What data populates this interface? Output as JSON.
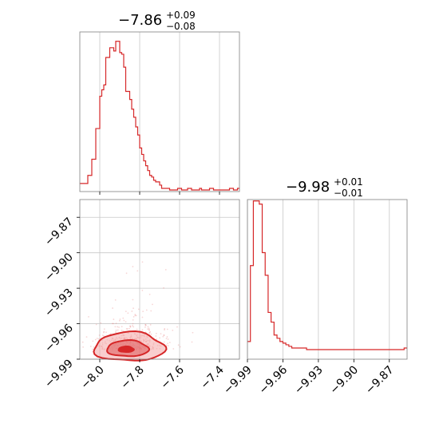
{
  "figure": {
    "accent_color": "#d62728",
    "fill_color": "#f4a6a6"
  },
  "chart_data": [
    {
      "panel": "marginal-param1",
      "type": "histogram",
      "title": "−7.86",
      "title_sup": "+0.09",
      "title_sub": "−0.08",
      "xlim": [
        -8.1,
        -7.3
      ],
      "bin_width": 0.01,
      "x_start": -8.1,
      "counts": [
        4,
        4,
        4,
        4,
        9,
        9,
        19,
        19,
        38,
        38,
        58,
        62,
        65,
        82,
        82,
        88,
        88,
        86,
        92,
        92,
        85,
        84,
        76,
        61,
        61,
        56,
        50,
        45,
        39,
        34,
        26,
        22,
        18,
        15,
        12,
        9,
        8,
        6,
        5,
        5,
        3,
        1,
        1,
        1,
        1,
        0,
        0,
        0,
        0,
        1,
        1,
        0,
        0,
        0,
        1,
        1,
        0,
        0,
        0,
        0,
        1,
        0,
        0,
        0,
        0,
        1,
        1,
        0,
        0,
        0,
        0,
        0,
        0,
        0,
        0,
        1,
        1,
        0,
        0,
        1
      ],
      "grid": true
    },
    {
      "panel": "joint-param1-param2",
      "type": "scatter",
      "xlim": [
        -8.1,
        -7.3
      ],
      "ylim": [
        -9.99,
        -9.855
      ],
      "xticks": [
        "−8.0",
        "−7.8",
        "−7.6",
        "−7.4"
      ],
      "xtick_values": [
        -8.0,
        -7.8,
        -7.6,
        -7.4
      ],
      "yticks": [
        "−9.87",
        "−9.90",
        "−9.93",
        "−9.96",
        "−9.99"
      ],
      "ytick_values": [
        -9.87,
        -9.9,
        -9.93,
        -9.96,
        -9.99
      ],
      "contour_levels": [
        0.39,
        0.86
      ],
      "grid": true
    },
    {
      "panel": "marginal-param2",
      "type": "histogram",
      "title": "−9.98",
      "title_sup": "+0.01",
      "title_sub": "−0.01",
      "xlim": [
        -9.99,
        -9.855
      ],
      "bin_width": 0.0025,
      "x_start": -9.99,
      "counts": [
        5,
        52,
        92,
        92,
        90,
        60,
        46,
        23,
        17,
        9,
        7,
        5,
        4,
        3,
        2,
        1,
        1,
        1,
        1,
        1,
        0,
        0,
        0,
        0,
        0,
        0,
        0,
        0,
        0,
        0,
        0,
        0,
        0,
        0,
        0,
        0,
        0,
        0,
        0,
        0,
        0,
        0,
        0,
        0,
        0,
        0,
        0,
        0,
        0,
        0,
        0,
        0,
        0,
        1
      ],
      "xticks": [
        "−9.99",
        "−9.96",
        "−9.93",
        "−9.90",
        "−9.87"
      ],
      "xtick_values": [
        -9.99,
        -9.96,
        -9.93,
        -9.9,
        -9.87
      ],
      "grid": true
    }
  ]
}
